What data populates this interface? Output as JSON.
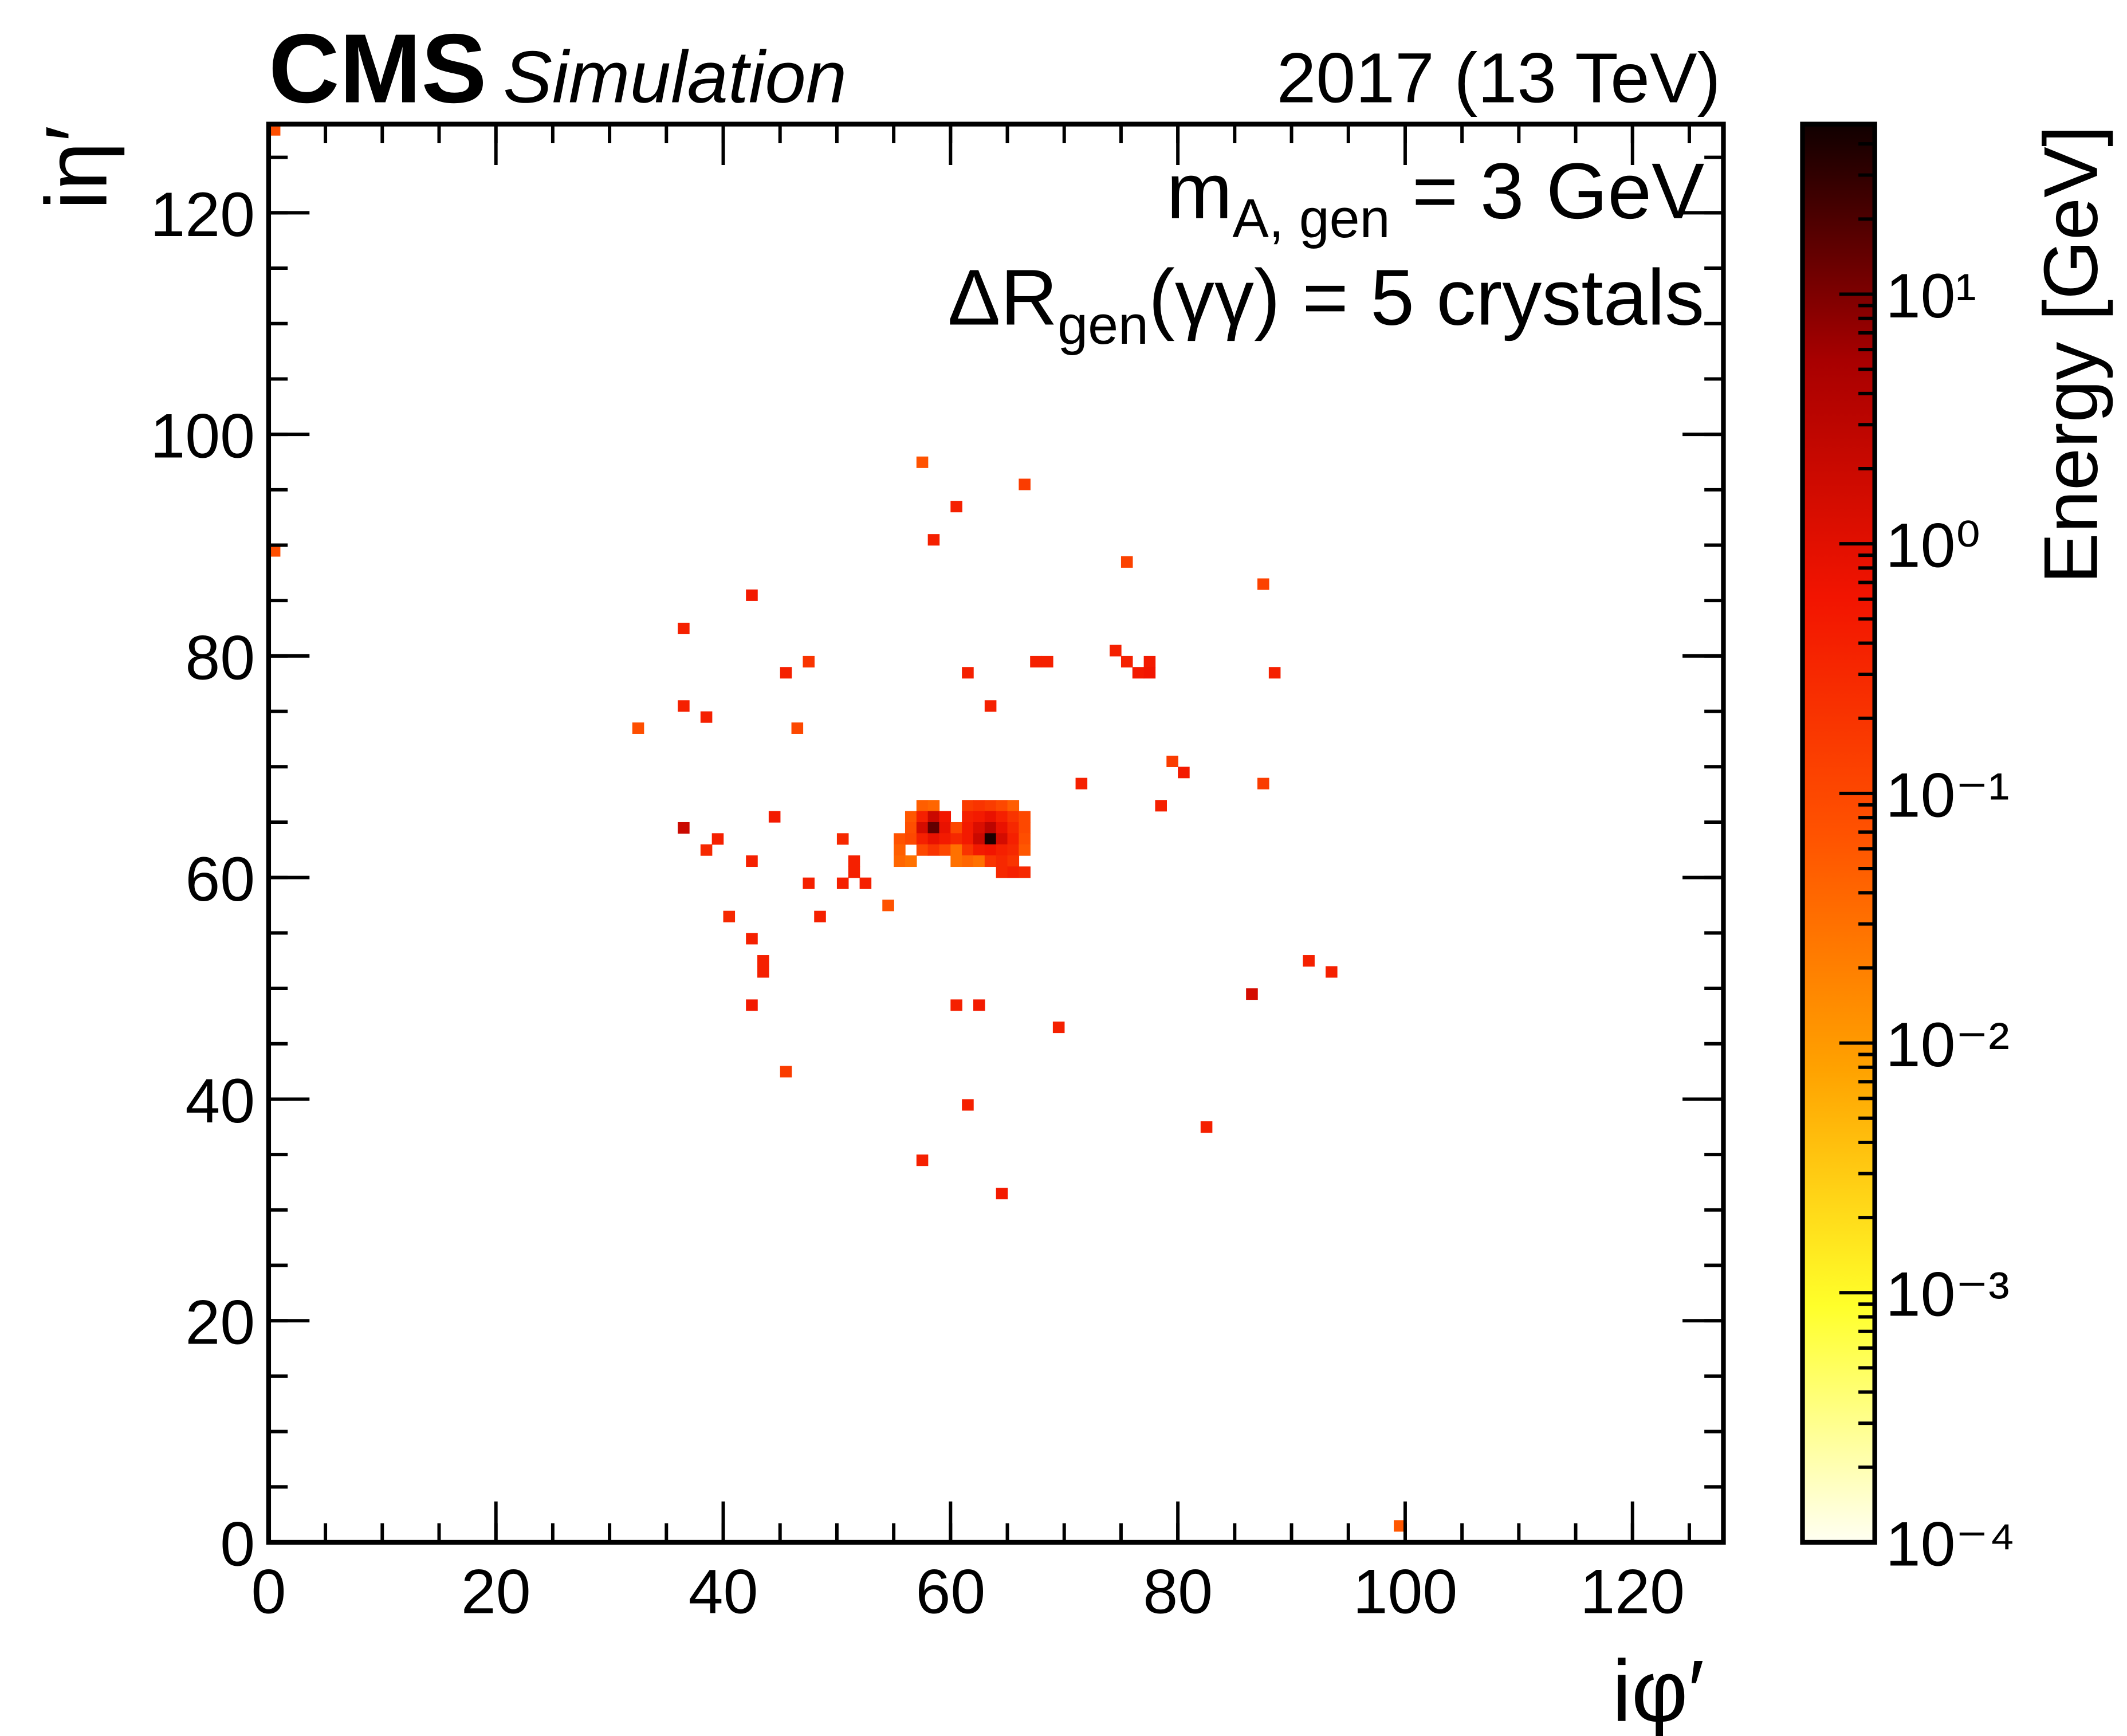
{
  "chart_data": {
    "type": "heatmap",
    "title": {
      "experiment": "CMS",
      "status": "Simulation",
      "right": "2017 (13 TeV)"
    },
    "annotations": [
      {
        "text": "m",
        "sub": "A, gen",
        "after": " = 3 GeV"
      },
      {
        "text": "ΔR",
        "sub": "gen",
        "after": "(γγ) = 5 crystals"
      }
    ],
    "x_label": "iφ′",
    "y_label": "iη′",
    "z_label": "Energy [GeV]",
    "xlim": [
      0,
      128
    ],
    "ylim": [
      0,
      128
    ],
    "xticks": [
      0,
      20,
      40,
      60,
      80,
      100,
      120
    ],
    "yticks": [
      0,
      20,
      40,
      60,
      80,
      100,
      120
    ],
    "zlim": [
      0.0001,
      48
    ],
    "zscale": "log",
    "zticks": [
      {
        "value": 0.0001,
        "label": "10⁻⁴"
      },
      {
        "value": 0.001,
        "label": "10⁻³"
      },
      {
        "value": 0.01,
        "label": "10⁻²"
      },
      {
        "value": 0.1,
        "label": "10⁻¹"
      },
      {
        "value": 1,
        "label": "10⁰"
      },
      {
        "value": 10,
        "label": "10¹"
      }
    ],
    "colorscale": [
      "#fffff2",
      "#ffff2a",
      "#ffa200",
      "#ff5200",
      "#f21400",
      "#a80000",
      "#100000"
    ],
    "x": [
      0,
      0,
      57,
      66,
      60,
      58,
      42,
      75,
      87,
      36,
      47,
      45,
      61,
      67,
      68,
      74,
      75,
      76,
      77,
      77,
      88,
      36,
      38,
      32,
      46,
      63,
      71,
      79,
      80,
      87,
      78,
      44,
      36,
      39,
      38,
      42,
      50,
      51,
      51,
      47,
      50,
      52,
      54,
      40,
      48,
      42,
      43,
      43,
      42,
      60,
      62,
      69,
      86,
      91,
      93,
      45,
      61,
      82,
      57,
      64,
      99,
      57,
      58,
      61,
      62,
      63,
      64,
      65,
      56,
      57,
      58,
      59,
      61,
      62,
      63,
      64,
      65,
      66,
      56,
      57,
      58,
      59,
      60,
      61,
      62,
      63,
      64,
      65,
      66,
      55,
      56,
      57,
      58,
      59,
      60,
      61,
      62,
      63,
      64,
      65,
      66,
      55,
      57,
      58,
      59,
      60,
      61,
      62,
      63,
      64,
      65,
      66,
      55,
      56,
      60,
      61,
      62,
      63,
      64,
      65,
      64,
      65,
      66
    ],
    "y": [
      127,
      89,
      97,
      95,
      93,
      90,
      85,
      88,
      86,
      82,
      79,
      78,
      78,
      79,
      79,
      80,
      79,
      78,
      79,
      78,
      78,
      75,
      74,
      73,
      73,
      75,
      68,
      70,
      69,
      68,
      66,
      65,
      64,
      63,
      62,
      61,
      63,
      61,
      60,
      59,
      59,
      59,
      57,
      56,
      56,
      54,
      52,
      51,
      48,
      48,
      48,
      46,
      49,
      52,
      51,
      42,
      39,
      37,
      34,
      31,
      1,
      66,
      66,
      66,
      66,
      66,
      66,
      66,
      65,
      65,
      65,
      65,
      65,
      65,
      65,
      65,
      65,
      65,
      64,
      64,
      64,
      64,
      64,
      64,
      64,
      64,
      64,
      64,
      64,
      63,
      63,
      63,
      63,
      63,
      63,
      63,
      63,
      63,
      63,
      63,
      63,
      62,
      62,
      62,
      62,
      62,
      62,
      62,
      62,
      62,
      62,
      62,
      61,
      61,
      61,
      61,
      61,
      61,
      61,
      61,
      60,
      60,
      60
    ],
    "values": [
      0.08,
      0.08,
      0.07,
      0.15,
      0.4,
      0.4,
      0.5,
      0.12,
      0.12,
      0.4,
      0.2,
      0.4,
      0.4,
      0.4,
      0.4,
      0.4,
      0.4,
      0.5,
      0.5,
      0.6,
      0.4,
      0.4,
      0.4,
      0.08,
      0.1,
      0.4,
      0.4,
      0.15,
      0.5,
      0.15,
      0.4,
      0.5,
      2,
      0.4,
      0.3,
      0.4,
      0.3,
      0.4,
      0.4,
      0.4,
      0.4,
      0.4,
      0.07,
      0.3,
      0.4,
      0.4,
      0.4,
      0.4,
      0.5,
      0.4,
      0.5,
      0.4,
      1.5,
      0.4,
      0.4,
      0.15,
      0.4,
      0.4,
      0.4,
      0.5,
      0.06,
      0.05,
      0.04,
      0.15,
      0.2,
      0.15,
      0.1,
      0.05,
      0.06,
      0.4,
      2,
      0.6,
      0.4,
      0.5,
      0.8,
      0.4,
      0.2,
      0.1,
      0.08,
      1.5,
      15,
      0.8,
      0.1,
      0.5,
      1.2,
      3,
      0.8,
      0.3,
      0.1,
      0.07,
      0.1,
      0.4,
      0.8,
      0.5,
      0.3,
      0.5,
      2,
      40,
      1.5,
      0.4,
      0.08,
      0.05,
      0.1,
      0.2,
      0.1,
      0.03,
      0.2,
      0.5,
      0.6,
      0.4,
      0.3,
      0.06,
      0.04,
      0.03,
      0.03,
      0.04,
      0.03,
      0.2,
      0.3,
      0.2,
      0.3,
      0.4,
      0.3
    ]
  }
}
